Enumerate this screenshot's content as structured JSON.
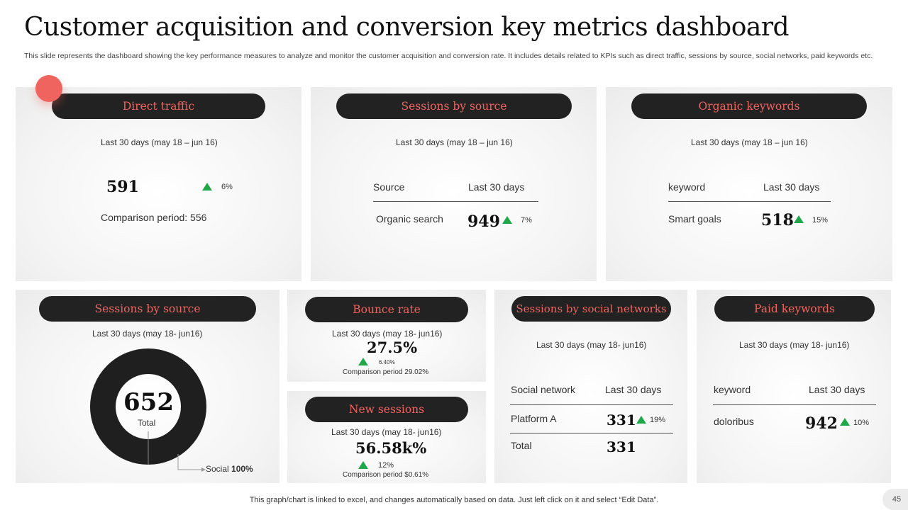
{
  "header": {
    "title": "Customer acquisition and conversion key metrics dashboard",
    "subtitle": "This slide represents the dashboard showing the key performance measures to analyze and monitor the customer acquisition and conversion rate. It includes details related to KPIs such as direct traffic, sessions by source, social networks, paid keywords etc."
  },
  "direct_traffic": {
    "title": "Direct traffic",
    "period": "Last 30 days (may 18 – jun 16)",
    "value": "591",
    "change": "6%",
    "comparison": "Comparison period: 556"
  },
  "sessions_source_top": {
    "title": "Sessions by source",
    "period": "Last 30 days (may 18 – jun 16)",
    "col1": "Source",
    "col2": "Last 30 days",
    "row_label": "Organic search",
    "row_value": "949",
    "row_change": "7%"
  },
  "organic_keywords": {
    "title": "Organic keywords",
    "period": "Last 30 days (may 18 – jun 16)",
    "col1": "keyword",
    "col2": "Last 30 days",
    "row_label": "Smart goals",
    "row_value": "518",
    "row_change": "15%"
  },
  "sessions_source_donut": {
    "title": "Sessions by source",
    "period": "Last 30 days (may 18- jun16)",
    "total_value": "652",
    "total_label": "Total",
    "legend_label": "Social",
    "legend_value": "100%"
  },
  "bounce_rate": {
    "title": "Bounce rate",
    "period": "Last 30 days (may 18- jun16)",
    "value": "27.5%",
    "change": "6.40%",
    "comparison": "Comparison period 29.02%"
  },
  "new_sessions": {
    "title": "New sessions",
    "period": "Last 30 days (may 18- jun16)",
    "value": "56.58k%",
    "change": "12%",
    "comparison": "Comparison period $0.61%"
  },
  "social_networks": {
    "title": "Sessions by social networks",
    "period": "Last 30 days (may 18- jun16)",
    "col1": "Social network",
    "col2": "Last 30 days",
    "row1_label": "Platform A",
    "row1_value": "331",
    "row1_change": "19%",
    "row2_label": "Total",
    "row2_value": "331"
  },
  "paid_keywords": {
    "title": "Paid keywords",
    "period": "Last 30 days (may 18- jun16)",
    "col1": "keyword",
    "col2": "Last 30 days",
    "row_label": "doloribus",
    "row_value": "942",
    "row_change": "10%"
  },
  "footer": {
    "note": "This graph/chart is linked to excel, and changes automatically based on data. Just left click on it and select “Edit Data”.",
    "page_number": "45"
  },
  "colors": {
    "accent": "#f0645f",
    "pill_bg": "#222222",
    "up": "#1ea84a"
  }
}
